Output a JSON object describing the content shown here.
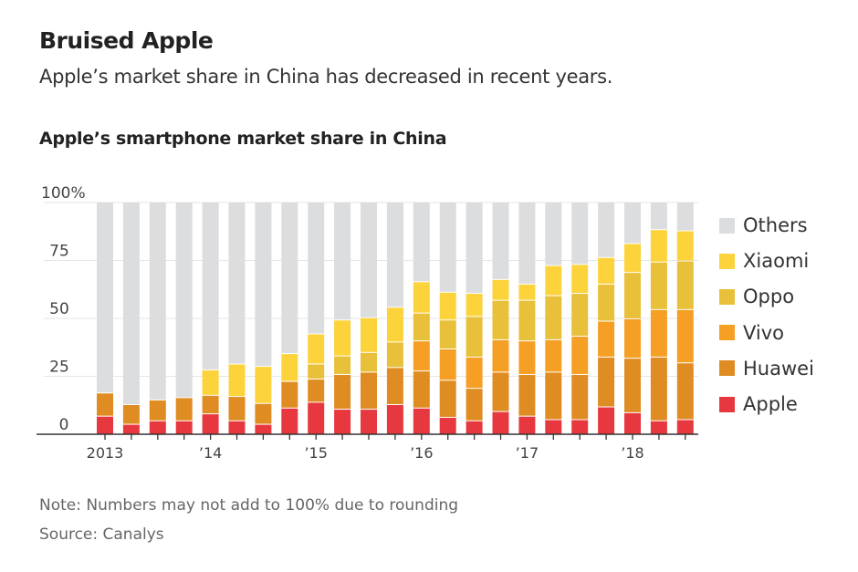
{
  "header": {
    "title": "Bruised Apple",
    "subtitle": "Apple’s market share in China has decreased in recent years."
  },
  "footer": {
    "note": "Note: Numbers may not add to 100% due to rounding",
    "source": "Source: Canalys"
  },
  "chart_data": {
    "type": "bar",
    "stacked": true,
    "title": "Apple’s smartphone market share in China",
    "xlabel": "",
    "ylabel": "",
    "ylim": [
      0,
      100
    ],
    "yticks": [
      0,
      25,
      50,
      75,
      100
    ],
    "ytick_labels": [
      "0",
      "25",
      "50",
      "75",
      "100%"
    ],
    "grid": true,
    "legend_position": "right",
    "categories": [
      "2013 Q1",
      "2013 Q2",
      "2013 Q3",
      "2013 Q4",
      "2014 Q1",
      "2014 Q2",
      "2014 Q3",
      "2014 Q4",
      "2015 Q1",
      "2015 Q2",
      "2015 Q3",
      "2015 Q4",
      "2016 Q1",
      "2016 Q2",
      "2016 Q3",
      "2016 Q4",
      "2017 Q1",
      "2017 Q2",
      "2017 Q3",
      "2017 Q4",
      "2018 Q1",
      "2018 Q2",
      "2018 Q3"
    ],
    "xtick_labels": [
      {
        "index": 0,
        "label": "2013"
      },
      {
        "index": 4,
        "label": "’14"
      },
      {
        "index": 8,
        "label": "’15"
      },
      {
        "index": 12,
        "label": "’16"
      },
      {
        "index": 16,
        "label": "’17"
      },
      {
        "index": 20,
        "label": "’18"
      }
    ],
    "series": [
      {
        "name": "Apple",
        "color": "#e8383f",
        "values": [
          8,
          4.5,
          6,
          6,
          9,
          6,
          4.5,
          11.5,
          14,
          11,
          11,
          13,
          11.5,
          7.5,
          6,
          10,
          8,
          6.5,
          6.5,
          12,
          9.5,
          6,
          6.5
        ]
      },
      {
        "name": "Huawei",
        "color": "#df8d23",
        "values": [
          10,
          8.5,
          9,
          10,
          8,
          10.5,
          9,
          11.5,
          10,
          15,
          16,
          16,
          16,
          16,
          14,
          17,
          18,
          20.5,
          19.5,
          21.5,
          23.5,
          27.5,
          24.5
        ]
      },
      {
        "name": "Vivo",
        "color": "#f69f25",
        "values": [
          0,
          0,
          0,
          0,
          0,
          0,
          0,
          0,
          0,
          0,
          0,
          0,
          13,
          13.5,
          13.5,
          14,
          14.5,
          14,
          16.5,
          15.5,
          17,
          20.5,
          23
        ]
      },
      {
        "name": "Oppo",
        "color": "#e8c03a",
        "values": [
          0,
          0,
          0,
          0,
          0,
          0,
          0,
          0,
          6.5,
          8,
          8.5,
          11,
          12,
          12.5,
          17.5,
          17,
          17.5,
          19,
          18.5,
          16,
          20,
          20.5,
          21
        ]
      },
      {
        "name": "Xiaomi",
        "color": "#fdd33c",
        "values": [
          0,
          0,
          0,
          0,
          11,
          14,
          16,
          12,
          13,
          15.5,
          15,
          15,
          13.5,
          12,
          10,
          9,
          7,
          13,
          12.5,
          11.5,
          12.5,
          14,
          13
        ]
      },
      {
        "name": "Others",
        "color": "#dcdddf",
        "values": [
          82,
          87,
          85,
          84,
          72,
          69.5,
          70.5,
          65,
          56.5,
          50.5,
          49.5,
          45,
          34,
          38.5,
          39,
          33,
          35,
          27,
          26.5,
          23.5,
          17.5,
          11.5,
          12
        ]
      }
    ],
    "legend_order": [
      "Others",
      "Xiaomi",
      "Oppo",
      "Vivo",
      "Huawei",
      "Apple"
    ]
  }
}
